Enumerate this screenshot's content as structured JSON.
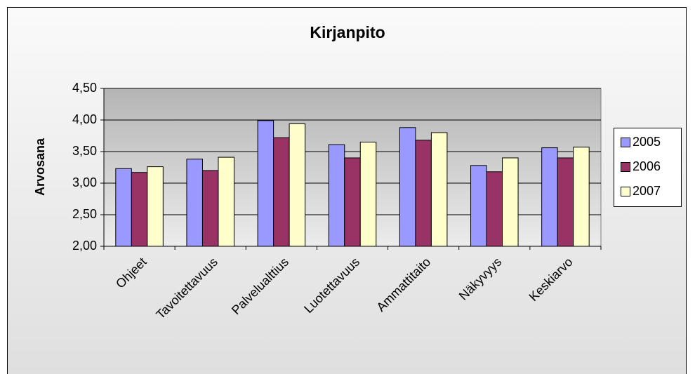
{
  "chart_data": {
    "type": "bar",
    "title": "Kirjanpito",
    "y_label": "Arvosana",
    "categories": [
      "Ohjeet",
      "Tavoitettavuus",
      "Palvelualttius",
      "Luotettavuus",
      "Ammattitaito",
      "Näkyvyys",
      "Keskiarvo"
    ],
    "series": [
      {
        "name": "2005",
        "color": "#9999ff",
        "values": [
          3.23,
          3.38,
          3.99,
          3.61,
          3.88,
          3.28,
          3.56
        ]
      },
      {
        "name": "2006",
        "color": "#993366",
        "values": [
          3.17,
          3.2,
          3.72,
          3.4,
          3.68,
          3.18,
          3.4
        ]
      },
      {
        "name": "2007",
        "color": "#ffffcc",
        "values": [
          3.26,
          3.41,
          3.94,
          3.65,
          3.8,
          3.4,
          3.57
        ]
      }
    ],
    "ylim": [
      2,
      4.5
    ],
    "yticks": [
      {
        "value": 2,
        "label": "2,00"
      },
      {
        "value": 2.5,
        "label": "2,50"
      },
      {
        "value": 3,
        "label": "3,00"
      },
      {
        "value": 3.5,
        "label": "3,50"
      },
      {
        "value": 4,
        "label": "4,00"
      },
      {
        "value": 4.5,
        "label": "4,50"
      }
    ],
    "grid": true,
    "legend": "right"
  }
}
